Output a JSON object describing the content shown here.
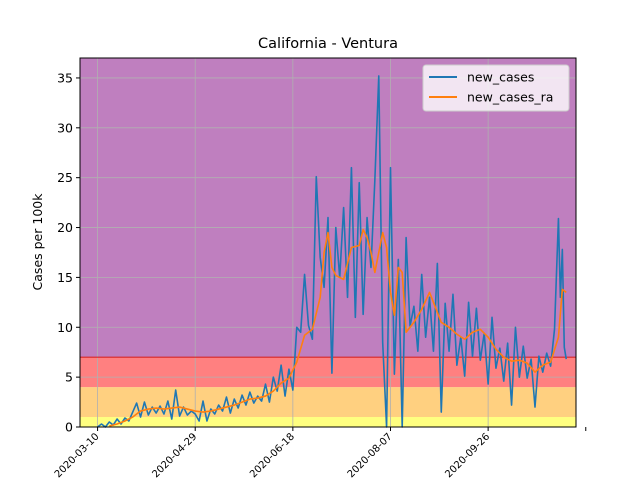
{
  "chart_data": {
    "type": "line",
    "title": "California - Ventura",
    "xlabel": "",
    "ylabel": "Cases per 100k",
    "x_start": "2020-03-01",
    "x_end": "2020-11-10",
    "xlim": [
      "2020-03-01",
      "2020-11-10"
    ],
    "ylim": [
      0,
      37
    ],
    "x_ticks": [
      "2020-03-10",
      "2020-04-29",
      "2020-06-18",
      "2020-08-07",
      "2020-09-26",
      "2020-11-15"
    ],
    "x_tick_labels": [
      "2020-03-10",
      "2020-04-29",
      "2020-06-18",
      "2020-08-07",
      "2020-09-26",
      ""
    ],
    "y_ticks": [
      0,
      5,
      10,
      15,
      20,
      25,
      30,
      35
    ],
    "y_tick_labels": [
      "0",
      "5",
      "10",
      "15",
      "20",
      "25",
      "30",
      "35"
    ],
    "grid": true,
    "legend_position": "top-right",
    "background_bands": [
      {
        "from": 0,
        "to": 1,
        "color": "#ffff80"
      },
      {
        "from": 1,
        "to": 4,
        "color": "#ffd080"
      },
      {
        "from": 4,
        "to": 7,
        "color": "#ff8080"
      },
      {
        "from": 7,
        "to": 37,
        "color": "#bf7fbf"
      }
    ],
    "band_line": {
      "y": 7,
      "color": "#d62728"
    },
    "series": [
      {
        "name": "new_cases",
        "color": "#1f77b4",
        "points": [
          [
            "2020-03-10",
            0.0
          ],
          [
            "2020-03-12",
            0.3
          ],
          [
            "2020-03-14",
            0.0
          ],
          [
            "2020-03-16",
            0.5
          ],
          [
            "2020-03-18",
            0.2
          ],
          [
            "2020-03-20",
            0.8
          ],
          [
            "2020-03-22",
            0.3
          ],
          [
            "2020-03-24",
            0.9
          ],
          [
            "2020-03-26",
            0.6
          ],
          [
            "2020-03-28",
            1.5
          ],
          [
            "2020-03-30",
            2.4
          ],
          [
            "2020-04-01",
            1.0
          ],
          [
            "2020-04-03",
            2.5
          ],
          [
            "2020-04-05",
            1.2
          ],
          [
            "2020-04-07",
            2.0
          ],
          [
            "2020-04-09",
            1.4
          ],
          [
            "2020-04-11",
            2.1
          ],
          [
            "2020-04-13",
            1.3
          ],
          [
            "2020-04-15",
            2.6
          ],
          [
            "2020-04-17",
            0.8
          ],
          [
            "2020-04-19",
            3.7
          ],
          [
            "2020-04-21",
            1.1
          ],
          [
            "2020-04-23",
            2.0
          ],
          [
            "2020-04-25",
            1.2
          ],
          [
            "2020-04-27",
            1.6
          ],
          [
            "2020-04-29",
            1.3
          ],
          [
            "2020-05-01",
            0.6
          ],
          [
            "2020-05-03",
            2.6
          ],
          [
            "2020-05-05",
            0.6
          ],
          [
            "2020-05-07",
            1.8
          ],
          [
            "2020-05-09",
            1.3
          ],
          [
            "2020-05-11",
            2.2
          ],
          [
            "2020-05-13",
            1.6
          ],
          [
            "2020-05-15",
            3.0
          ],
          [
            "2020-05-17",
            1.4
          ],
          [
            "2020-05-19",
            2.8
          ],
          [
            "2020-05-21",
            1.9
          ],
          [
            "2020-05-23",
            3.2
          ],
          [
            "2020-05-25",
            2.2
          ],
          [
            "2020-05-27",
            3.5
          ],
          [
            "2020-05-29",
            2.4
          ],
          [
            "2020-05-31",
            3.1
          ],
          [
            "2020-06-02",
            2.6
          ],
          [
            "2020-06-04",
            4.3
          ],
          [
            "2020-06-06",
            2.5
          ],
          [
            "2020-06-08",
            5.0
          ],
          [
            "2020-06-10",
            3.6
          ],
          [
            "2020-06-12",
            6.2
          ],
          [
            "2020-06-14",
            3.1
          ],
          [
            "2020-06-16",
            5.8
          ],
          [
            "2020-06-18",
            3.7
          ],
          [
            "2020-06-20",
            10.0
          ],
          [
            "2020-06-22",
            9.5
          ],
          [
            "2020-06-24",
            15.3
          ],
          [
            "2020-06-26",
            10.2
          ],
          [
            "2020-06-28",
            8.8
          ],
          [
            "2020-06-30",
            25.1
          ],
          [
            "2020-07-02",
            17.0
          ],
          [
            "2020-07-04",
            14.0
          ],
          [
            "2020-07-06",
            21.0
          ],
          [
            "2020-07-08",
            5.4
          ],
          [
            "2020-07-10",
            20.0
          ],
          [
            "2020-07-12",
            15.0
          ],
          [
            "2020-07-14",
            22.0
          ],
          [
            "2020-07-16",
            13.0
          ],
          [
            "2020-07-18",
            26.0
          ],
          [
            "2020-07-20",
            11.0
          ],
          [
            "2020-07-22",
            24.5
          ],
          [
            "2020-07-24",
            11.3
          ],
          [
            "2020-07-26",
            21.0
          ],
          [
            "2020-07-28",
            16.0
          ],
          [
            "2020-07-30",
            24.8
          ],
          [
            "2020-08-01",
            35.2
          ],
          [
            "2020-08-03",
            8.5
          ],
          [
            "2020-08-05",
            0.0
          ],
          [
            "2020-08-07",
            26.0
          ],
          [
            "2020-08-09",
            5.3
          ],
          [
            "2020-08-11",
            16.8
          ],
          [
            "2020-08-13",
            0.0
          ],
          [
            "2020-08-15",
            19.0
          ],
          [
            "2020-08-17",
            10.1
          ],
          [
            "2020-08-19",
            12.1
          ],
          [
            "2020-08-21",
            7.6
          ],
          [
            "2020-08-23",
            15.3
          ],
          [
            "2020-08-25",
            9.0
          ],
          [
            "2020-08-27",
            13.0
          ],
          [
            "2020-08-29",
            7.6
          ],
          [
            "2020-08-31",
            16.4
          ],
          [
            "2020-09-02",
            1.5
          ],
          [
            "2020-09-04",
            12.4
          ],
          [
            "2020-09-06",
            7.6
          ],
          [
            "2020-09-08",
            13.3
          ],
          [
            "2020-09-10",
            6.2
          ],
          [
            "2020-09-12",
            9.0
          ],
          [
            "2020-09-14",
            5.1
          ],
          [
            "2020-09-16",
            12.5
          ],
          [
            "2020-09-18",
            7.1
          ],
          [
            "2020-09-20",
            11.9
          ],
          [
            "2020-09-22",
            6.7
          ],
          [
            "2020-09-24",
            9.4
          ],
          [
            "2020-09-26",
            4.3
          ],
          [
            "2020-09-28",
            11.0
          ],
          [
            "2020-09-30",
            5.9
          ],
          [
            "2020-10-02",
            7.9
          ],
          [
            "2020-10-04",
            4.6
          ],
          [
            "2020-10-06",
            8.4
          ],
          [
            "2020-10-08",
            2.2
          ],
          [
            "2020-10-10",
            10.0
          ],
          [
            "2020-10-12",
            5.0
          ],
          [
            "2020-10-14",
            8.1
          ],
          [
            "2020-10-16",
            4.9
          ],
          [
            "2020-10-18",
            6.8
          ],
          [
            "2020-10-20",
            2.0
          ],
          [
            "2020-10-22",
            7.1
          ],
          [
            "2020-10-24",
            5.5
          ],
          [
            "2020-10-26",
            7.4
          ],
          [
            "2020-10-28",
            6.1
          ],
          [
            "2020-10-30",
            9.8
          ],
          [
            "2020-11-01",
            20.9
          ],
          [
            "2020-11-02",
            13.0
          ],
          [
            "2020-11-03",
            17.8
          ],
          [
            "2020-11-04",
            8.0
          ],
          [
            "2020-11-05",
            6.8
          ]
        ]
      },
      {
        "name": "new_cases_ra",
        "color": "#ff7f0e",
        "points": [
          [
            "2020-03-16",
            0.1
          ],
          [
            "2020-03-20",
            0.3
          ],
          [
            "2020-03-24",
            0.6
          ],
          [
            "2020-03-28",
            1.0
          ],
          [
            "2020-04-01",
            1.6
          ],
          [
            "2020-04-05",
            1.8
          ],
          [
            "2020-04-09",
            1.9
          ],
          [
            "2020-04-13",
            1.8
          ],
          [
            "2020-04-17",
            1.9
          ],
          [
            "2020-04-21",
            2.0
          ],
          [
            "2020-04-25",
            1.8
          ],
          [
            "2020-04-29",
            1.6
          ],
          [
            "2020-05-03",
            1.5
          ],
          [
            "2020-05-07",
            1.6
          ],
          [
            "2020-05-11",
            1.8
          ],
          [
            "2020-05-15",
            2.0
          ],
          [
            "2020-05-19",
            2.2
          ],
          [
            "2020-05-23",
            2.5
          ],
          [
            "2020-05-27",
            2.8
          ],
          [
            "2020-05-31",
            2.9
          ],
          [
            "2020-06-04",
            3.1
          ],
          [
            "2020-06-08",
            3.6
          ],
          [
            "2020-06-12",
            4.4
          ],
          [
            "2020-06-16",
            4.9
          ],
          [
            "2020-06-20",
            6.5
          ],
          [
            "2020-06-24",
            9.2
          ],
          [
            "2020-06-28",
            9.8
          ],
          [
            "2020-07-02",
            13.0
          ],
          [
            "2020-07-04",
            17.5
          ],
          [
            "2020-07-06",
            19.5
          ],
          [
            "2020-07-08",
            16.0
          ],
          [
            "2020-07-10",
            15.2
          ],
          [
            "2020-07-14",
            14.8
          ],
          [
            "2020-07-18",
            18.0
          ],
          [
            "2020-07-22",
            18.2
          ],
          [
            "2020-07-24",
            19.8
          ],
          [
            "2020-07-26",
            19.0
          ],
          [
            "2020-07-28",
            17.5
          ],
          [
            "2020-07-30",
            15.5
          ],
          [
            "2020-08-01",
            17.5
          ],
          [
            "2020-08-03",
            19.5
          ],
          [
            "2020-08-05",
            18.0
          ],
          [
            "2020-08-07",
            13.5
          ],
          [
            "2020-08-09",
            11.2
          ],
          [
            "2020-08-11",
            16.0
          ],
          [
            "2020-08-13",
            15.5
          ],
          [
            "2020-08-15",
            9.5
          ],
          [
            "2020-08-19",
            10.5
          ],
          [
            "2020-08-23",
            11.8
          ],
          [
            "2020-08-27",
            13.5
          ],
          [
            "2020-08-29",
            12.5
          ],
          [
            "2020-09-02",
            10.5
          ],
          [
            "2020-09-06",
            10.0
          ],
          [
            "2020-09-10",
            9.3
          ],
          [
            "2020-09-14",
            8.8
          ],
          [
            "2020-09-18",
            9.5
          ],
          [
            "2020-09-22",
            9.8
          ],
          [
            "2020-09-26",
            9.0
          ],
          [
            "2020-09-30",
            7.8
          ],
          [
            "2020-10-04",
            7.0
          ],
          [
            "2020-10-08",
            6.6
          ],
          [
            "2020-10-12",
            6.7
          ],
          [
            "2020-10-16",
            6.4
          ],
          [
            "2020-10-20",
            5.5
          ],
          [
            "2020-10-24",
            6.2
          ],
          [
            "2020-10-28",
            6.5
          ],
          [
            "2020-11-01",
            9.0
          ],
          [
            "2020-11-03",
            13.8
          ],
          [
            "2020-11-05",
            13.5
          ]
        ]
      }
    ]
  }
}
